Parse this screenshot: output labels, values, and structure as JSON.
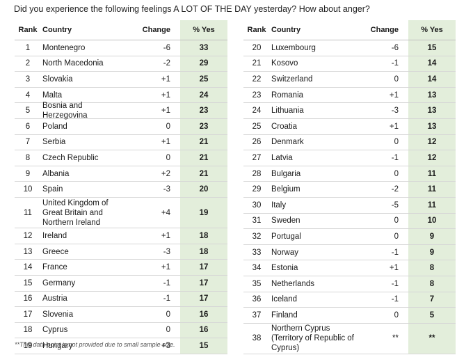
{
  "title": "Did you experience the following feelings A LOT OF THE DAY yesterday? How about anger?",
  "columns": {
    "rank": "Rank",
    "country": "Country",
    "change": "Change",
    "yes": "% Yes"
  },
  "chart_data": {
    "type": "table",
    "title": "Did you experience the following feelings A LOT OF THE DAY yesterday? How about anger?",
    "columns": [
      "Rank",
      "Country",
      "Change",
      "% Yes"
    ],
    "rows": [
      {
        "rank": "1",
        "country": "Montenegro",
        "change": "-6",
        "yes": "33"
      },
      {
        "rank": "2",
        "country": "North Macedonia",
        "change": "-2",
        "yes": "29"
      },
      {
        "rank": "3",
        "country": "Slovakia",
        "change": "+1",
        "yes": "25"
      },
      {
        "rank": "4",
        "country": "Malta",
        "change": "+1",
        "yes": "24"
      },
      {
        "rank": "5",
        "country": "Bosnia and Herzegovina",
        "change": "+1",
        "yes": "23"
      },
      {
        "rank": "6",
        "country": "Poland",
        "change": "0",
        "yes": "23"
      },
      {
        "rank": "7",
        "country": "Serbia",
        "change": "+1",
        "yes": "21"
      },
      {
        "rank": "8",
        "country": "Czech Republic",
        "change": "0",
        "yes": "21"
      },
      {
        "rank": "9",
        "country": "Albania",
        "change": "+2",
        "yes": "21"
      },
      {
        "rank": "10",
        "country": "Spain",
        "change": "-3",
        "yes": "20"
      },
      {
        "rank": "11",
        "country": "United Kingdom of Great Britain and Northern Ireland",
        "change": "+4",
        "yes": "19"
      },
      {
        "rank": "12",
        "country": "Ireland",
        "change": "+1",
        "yes": "18"
      },
      {
        "rank": "13",
        "country": "Greece",
        "change": "-3",
        "yes": "18"
      },
      {
        "rank": "14",
        "country": "France",
        "change": "+1",
        "yes": "17"
      },
      {
        "rank": "15",
        "country": "Germany",
        "change": "-1",
        "yes": "17"
      },
      {
        "rank": "16",
        "country": "Austria",
        "change": "-1",
        "yes": "17"
      },
      {
        "rank": "17",
        "country": "Slovenia",
        "change": "0",
        "yes": "16"
      },
      {
        "rank": "18",
        "country": "Cyprus",
        "change": "0",
        "yes": "16"
      },
      {
        "rank": "19",
        "country": "Hungary",
        "change": "+3",
        "yes": "15"
      },
      {
        "rank": "20",
        "country": "Luxembourg",
        "change": "-6",
        "yes": "15"
      },
      {
        "rank": "21",
        "country": "Kosovo",
        "change": "-1",
        "yes": "14"
      },
      {
        "rank": "22",
        "country": "Switzerland",
        "change": "0",
        "yes": "14"
      },
      {
        "rank": "23",
        "country": "Romania",
        "change": "+1",
        "yes": "13"
      },
      {
        "rank": "24",
        "country": "Lithuania",
        "change": "-3",
        "yes": "13"
      },
      {
        "rank": "25",
        "country": "Croatia",
        "change": "+1",
        "yes": "13"
      },
      {
        "rank": "26",
        "country": "Denmark",
        "change": "0",
        "yes": "12"
      },
      {
        "rank": "27",
        "country": "Latvia",
        "change": "-1",
        "yes": "12"
      },
      {
        "rank": "28",
        "country": "Bulgaria",
        "change": "0",
        "yes": "11"
      },
      {
        "rank": "29",
        "country": "Belgium",
        "change": "-2",
        "yes": "11"
      },
      {
        "rank": "30",
        "country": "Italy",
        "change": "-5",
        "yes": "11"
      },
      {
        "rank": "31",
        "country": "Sweden",
        "change": "0",
        "yes": "10"
      },
      {
        "rank": "32",
        "country": "Portugal",
        "change": "0",
        "yes": "9"
      },
      {
        "rank": "33",
        "country": "Norway",
        "change": "-1",
        "yes": "9"
      },
      {
        "rank": "34",
        "country": "Estonia",
        "change": "+1",
        "yes": "8"
      },
      {
        "rank": "35",
        "country": "Netherlands",
        "change": "-1",
        "yes": "8"
      },
      {
        "rank": "36",
        "country": "Iceland",
        "change": "-1",
        "yes": "7"
      },
      {
        "rank": "37",
        "country": "Finland",
        "change": "0",
        "yes": "5"
      },
      {
        "rank": "38",
        "country": "Northern Cyprus (Territory of Republic of Cyprus)",
        "change": "**",
        "yes": "**"
      }
    ]
  },
  "footnote": "**This data point is not provided due to small sample size.",
  "colors": {
    "yes_column_bg": "#e3eedb",
    "row_divider": "#d6d6d6"
  }
}
